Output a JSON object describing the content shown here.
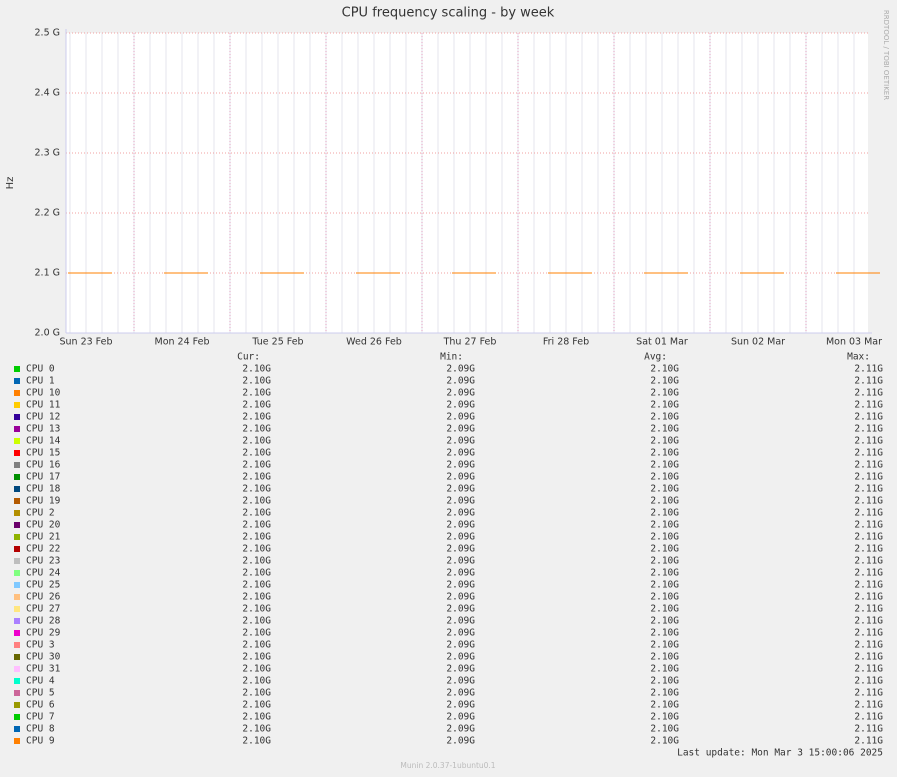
{
  "chart_data": {
    "type": "line",
    "title": "CPU frequency scaling - by week",
    "y_label": "Hz",
    "watermark": "RRDTOOL / TOBI OETIKER",
    "last_update": "Last update: Mon Mar  3 15:00:06 2025",
    "footer": "Munin 2.0.37-1ubuntu0.1",
    "categories": [
      "Sun 23 Feb",
      "Mon 24 Feb",
      "Tue 25 Feb",
      "Wed 26 Feb",
      "Thu 27 Feb",
      "Fri 28 Feb",
      "Sat 01 Mar",
      "Sun 02 Mar",
      "Mon 03 Mar"
    ],
    "ylim": [
      2000000000,
      2500000000
    ],
    "yticks": [
      {
        "value": 2000000000,
        "label": "2.0 G"
      },
      {
        "value": 2100000000,
        "label": "2.1 G"
      },
      {
        "value": 2200000000,
        "label": "2.2 G"
      },
      {
        "value": 2300000000,
        "label": "2.3 G"
      },
      {
        "value": 2400000000,
        "label": "2.4 G"
      },
      {
        "value": 2500000000,
        "label": "2.5 G"
      }
    ],
    "grid": true,
    "legend_headers": [
      "Cur:",
      "Min:",
      "Avg:",
      "Max:"
    ],
    "series": [
      {
        "name": "CPU 0",
        "color": "#00CC00",
        "values": [
          2100000000,
          2100000000,
          2100000000,
          2100000000,
          2100000000,
          2100000000,
          2100000000,
          2100000000,
          2100000000
        ],
        "cur": "2.10G",
        "min": "2.09G",
        "avg": "2.10G",
        "max": "2.11G"
      },
      {
        "name": "CPU 1",
        "color": "#0066B3",
        "values": [
          2100000000,
          2100000000,
          2100000000,
          2100000000,
          2100000000,
          2100000000,
          2100000000,
          2100000000,
          2100000000
        ],
        "cur": "2.10G",
        "min": "2.09G",
        "avg": "2.10G",
        "max": "2.11G"
      },
      {
        "name": "CPU 10",
        "color": "#FF8000",
        "values": [
          2100000000,
          2100000000,
          2100000000,
          2100000000,
          2100000000,
          2100000000,
          2100000000,
          2100000000,
          2100000000
        ],
        "cur": "2.10G",
        "min": "2.09G",
        "avg": "2.10G",
        "max": "2.11G"
      },
      {
        "name": "CPU 11",
        "color": "#FFCC00",
        "values": [
          2100000000,
          2100000000,
          2100000000,
          2100000000,
          2100000000,
          2100000000,
          2100000000,
          2100000000,
          2100000000
        ],
        "cur": "2.10G",
        "min": "2.09G",
        "avg": "2.10G",
        "max": "2.11G"
      },
      {
        "name": "CPU 12",
        "color": "#330099",
        "values": [
          2100000000,
          2100000000,
          2100000000,
          2100000000,
          2100000000,
          2100000000,
          2100000000,
          2100000000,
          2100000000
        ],
        "cur": "2.10G",
        "min": "2.09G",
        "avg": "2.10G",
        "max": "2.11G"
      },
      {
        "name": "CPU 13",
        "color": "#990099",
        "values": [
          2100000000,
          2100000000,
          2100000000,
          2100000000,
          2100000000,
          2100000000,
          2100000000,
          2100000000,
          2100000000
        ],
        "cur": "2.10G",
        "min": "2.09G",
        "avg": "2.10G",
        "max": "2.11G"
      },
      {
        "name": "CPU 14",
        "color": "#CCFF00",
        "values": [
          2100000000,
          2100000000,
          2100000000,
          2100000000,
          2100000000,
          2100000000,
          2100000000,
          2100000000,
          2100000000
        ],
        "cur": "2.10G",
        "min": "2.09G",
        "avg": "2.10G",
        "max": "2.11G"
      },
      {
        "name": "CPU 15",
        "color": "#FF0000",
        "values": [
          2100000000,
          2100000000,
          2100000000,
          2100000000,
          2100000000,
          2100000000,
          2100000000,
          2100000000,
          2100000000
        ],
        "cur": "2.10G",
        "min": "2.09G",
        "avg": "2.10G",
        "max": "2.11G"
      },
      {
        "name": "CPU 16",
        "color": "#808080",
        "values": [
          2100000000,
          2100000000,
          2100000000,
          2100000000,
          2100000000,
          2100000000,
          2100000000,
          2100000000,
          2100000000
        ],
        "cur": "2.10G",
        "min": "2.09G",
        "avg": "2.10G",
        "max": "2.11G"
      },
      {
        "name": "CPU 17",
        "color": "#008F00",
        "values": [
          2100000000,
          2100000000,
          2100000000,
          2100000000,
          2100000000,
          2100000000,
          2100000000,
          2100000000,
          2100000000
        ],
        "cur": "2.10G",
        "min": "2.09G",
        "avg": "2.10G",
        "max": "2.11G"
      },
      {
        "name": "CPU 18",
        "color": "#00487D",
        "values": [
          2100000000,
          2100000000,
          2100000000,
          2100000000,
          2100000000,
          2100000000,
          2100000000,
          2100000000,
          2100000000
        ],
        "cur": "2.10G",
        "min": "2.09G",
        "avg": "2.10G",
        "max": "2.11G"
      },
      {
        "name": "CPU 19",
        "color": "#B35A00",
        "values": [
          2100000000,
          2100000000,
          2100000000,
          2100000000,
          2100000000,
          2100000000,
          2100000000,
          2100000000,
          2100000000
        ],
        "cur": "2.10G",
        "min": "2.09G",
        "avg": "2.10G",
        "max": "2.11G"
      },
      {
        "name": "CPU 2",
        "color": "#B38F00",
        "values": [
          2100000000,
          2100000000,
          2100000000,
          2100000000,
          2100000000,
          2100000000,
          2100000000,
          2100000000,
          2100000000
        ],
        "cur": "2.10G",
        "min": "2.09G",
        "avg": "2.10G",
        "max": "2.11G"
      },
      {
        "name": "CPU 20",
        "color": "#6B006B",
        "values": [
          2100000000,
          2100000000,
          2100000000,
          2100000000,
          2100000000,
          2100000000,
          2100000000,
          2100000000,
          2100000000
        ],
        "cur": "2.10G",
        "min": "2.09G",
        "avg": "2.10G",
        "max": "2.11G"
      },
      {
        "name": "CPU 21",
        "color": "#8FB300",
        "values": [
          2100000000,
          2100000000,
          2100000000,
          2100000000,
          2100000000,
          2100000000,
          2100000000,
          2100000000,
          2100000000
        ],
        "cur": "2.10G",
        "min": "2.09G",
        "avg": "2.10G",
        "max": "2.11G"
      },
      {
        "name": "CPU 22",
        "color": "#B30000",
        "values": [
          2100000000,
          2100000000,
          2100000000,
          2100000000,
          2100000000,
          2100000000,
          2100000000,
          2100000000,
          2100000000
        ],
        "cur": "2.10G",
        "min": "2.09G",
        "avg": "2.10G",
        "max": "2.11G"
      },
      {
        "name": "CPU 23",
        "color": "#BEBEBE",
        "values": [
          2100000000,
          2100000000,
          2100000000,
          2100000000,
          2100000000,
          2100000000,
          2100000000,
          2100000000,
          2100000000
        ],
        "cur": "2.10G",
        "min": "2.09G",
        "avg": "2.10G",
        "max": "2.11G"
      },
      {
        "name": "CPU 24",
        "color": "#80FF80",
        "values": [
          2100000000,
          2100000000,
          2100000000,
          2100000000,
          2100000000,
          2100000000,
          2100000000,
          2100000000,
          2100000000
        ],
        "cur": "2.10G",
        "min": "2.09G",
        "avg": "2.10G",
        "max": "2.11G"
      },
      {
        "name": "CPU 25",
        "color": "#80C9FF",
        "values": [
          2100000000,
          2100000000,
          2100000000,
          2100000000,
          2100000000,
          2100000000,
          2100000000,
          2100000000,
          2100000000
        ],
        "cur": "2.10G",
        "min": "2.09G",
        "avg": "2.10G",
        "max": "2.11G"
      },
      {
        "name": "CPU 26",
        "color": "#FFC080",
        "values": [
          2100000000,
          2100000000,
          2100000000,
          2100000000,
          2100000000,
          2100000000,
          2100000000,
          2100000000,
          2100000000
        ],
        "cur": "2.10G",
        "min": "2.09G",
        "avg": "2.10G",
        "max": "2.11G"
      },
      {
        "name": "CPU 27",
        "color": "#FFE680",
        "values": [
          2100000000,
          2100000000,
          2100000000,
          2100000000,
          2100000000,
          2100000000,
          2100000000,
          2100000000,
          2100000000
        ],
        "cur": "2.10G",
        "min": "2.09G",
        "avg": "2.10G",
        "max": "2.11G"
      },
      {
        "name": "CPU 28",
        "color": "#AA80FF",
        "values": [
          2100000000,
          2100000000,
          2100000000,
          2100000000,
          2100000000,
          2100000000,
          2100000000,
          2100000000,
          2100000000
        ],
        "cur": "2.10G",
        "min": "2.09G",
        "avg": "2.10G",
        "max": "2.11G"
      },
      {
        "name": "CPU 29",
        "color": "#EE00CC",
        "values": [
          2100000000,
          2100000000,
          2100000000,
          2100000000,
          2100000000,
          2100000000,
          2100000000,
          2100000000,
          2100000000
        ],
        "cur": "2.10G",
        "min": "2.09G",
        "avg": "2.10G",
        "max": "2.11G"
      },
      {
        "name": "CPU 3",
        "color": "#FF8080",
        "values": [
          2100000000,
          2100000000,
          2100000000,
          2100000000,
          2100000000,
          2100000000,
          2100000000,
          2100000000,
          2100000000
        ],
        "cur": "2.10G",
        "min": "2.09G",
        "avg": "2.10G",
        "max": "2.11G"
      },
      {
        "name": "CPU 30",
        "color": "#666600",
        "values": [
          2100000000,
          2100000000,
          2100000000,
          2100000000,
          2100000000,
          2100000000,
          2100000000,
          2100000000,
          2100000000
        ],
        "cur": "2.10G",
        "min": "2.09G",
        "avg": "2.10G",
        "max": "2.11G"
      },
      {
        "name": "CPU 31",
        "color": "#FFBFFF",
        "values": [
          2100000000,
          2100000000,
          2100000000,
          2100000000,
          2100000000,
          2100000000,
          2100000000,
          2100000000,
          2100000000
        ],
        "cur": "2.10G",
        "min": "2.09G",
        "avg": "2.10G",
        "max": "2.11G"
      },
      {
        "name": "CPU 4",
        "color": "#00FFCC",
        "values": [
          2100000000,
          2100000000,
          2100000000,
          2100000000,
          2100000000,
          2100000000,
          2100000000,
          2100000000,
          2100000000
        ],
        "cur": "2.10G",
        "min": "2.09G",
        "avg": "2.10G",
        "max": "2.11G"
      },
      {
        "name": "CPU 5",
        "color": "#CC6699",
        "values": [
          2100000000,
          2100000000,
          2100000000,
          2100000000,
          2100000000,
          2100000000,
          2100000000,
          2100000000,
          2100000000
        ],
        "cur": "2.10G",
        "min": "2.09G",
        "avg": "2.10G",
        "max": "2.11G"
      },
      {
        "name": "CPU 6",
        "color": "#999900",
        "values": [
          2100000000,
          2100000000,
          2100000000,
          2100000000,
          2100000000,
          2100000000,
          2100000000,
          2100000000,
          2100000000
        ],
        "cur": "2.10G",
        "min": "2.09G",
        "avg": "2.10G",
        "max": "2.11G"
      },
      {
        "name": "CPU 7",
        "color": "#00CC00",
        "values": [
          2100000000,
          2100000000,
          2100000000,
          2100000000,
          2100000000,
          2100000000,
          2100000000,
          2100000000,
          2100000000
        ],
        "cur": "2.10G",
        "min": "2.09G",
        "avg": "2.10G",
        "max": "2.11G"
      },
      {
        "name": "CPU 8",
        "color": "#0066B3",
        "values": [
          2100000000,
          2100000000,
          2100000000,
          2100000000,
          2100000000,
          2100000000,
          2100000000,
          2100000000,
          2100000000
        ],
        "cur": "2.10G",
        "min": "2.09G",
        "avg": "2.10G",
        "max": "2.11G"
      },
      {
        "name": "CPU 9",
        "color": "#FF8000",
        "values": [
          2100000000,
          2100000000,
          2100000000,
          2100000000,
          2100000000,
          2100000000,
          2100000000,
          2100000000,
          2100000000
        ],
        "cur": "2.10G",
        "min": "2.09G",
        "avg": "2.10G",
        "max": "2.11G"
      }
    ]
  }
}
